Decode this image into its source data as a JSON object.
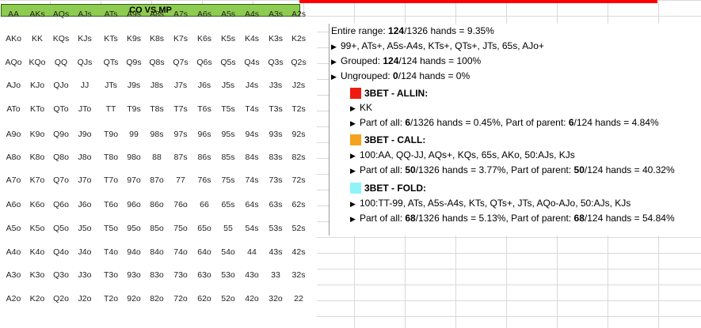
{
  "title": "CO VS MP",
  "colors": {
    "allin": "#ee1c10",
    "call": "#f5a21c",
    "fold": "#8ff3f8",
    "title_bg": "#8ecb51"
  },
  "matrix": [
    [
      [
        "AA",
        "call"
      ],
      [
        "AKs",
        "call"
      ],
      [
        "AQs",
        "call"
      ],
      [
        "AJs",
        "call"
      ],
      [
        "ATs",
        "fold"
      ],
      [
        "A9s",
        ""
      ],
      [
        "A8s",
        ""
      ],
      [
        "A7s",
        ""
      ],
      [
        "A6s",
        ""
      ],
      [
        "A5s",
        "fold"
      ],
      [
        "A4s",
        "fold"
      ],
      [
        "A3s",
        ""
      ],
      [
        "A2s",
        ""
      ]
    ],
    [
      [
        "AKo",
        "call"
      ],
      [
        "KK",
        "allin"
      ],
      [
        "KQs",
        "call"
      ],
      [
        "KJs",
        "call"
      ],
      [
        "KTs",
        "fold"
      ],
      [
        "K9s",
        ""
      ],
      [
        "K8s",
        ""
      ],
      [
        "K7s",
        ""
      ],
      [
        "K6s",
        ""
      ],
      [
        "K5s",
        ""
      ],
      [
        "K4s",
        ""
      ],
      [
        "K3s",
        ""
      ],
      [
        "K2s",
        ""
      ]
    ],
    [
      [
        "AQo",
        "fold"
      ],
      [
        "KQo",
        ""
      ],
      [
        "QQ",
        "call"
      ],
      [
        "QJs",
        "fold"
      ],
      [
        "QTs",
        "fold"
      ],
      [
        "Q9s",
        ""
      ],
      [
        "Q8s",
        ""
      ],
      [
        "Q7s",
        ""
      ],
      [
        "Q6s",
        ""
      ],
      [
        "Q5s",
        ""
      ],
      [
        "Q4s",
        ""
      ],
      [
        "Q3s",
        ""
      ],
      [
        "Q2s",
        ""
      ]
    ],
    [
      [
        "AJo",
        "fold"
      ],
      [
        "KJo",
        ""
      ],
      [
        "QJo",
        ""
      ],
      [
        "JJ",
        "call"
      ],
      [
        "JTs",
        "fold"
      ],
      [
        "J9s",
        ""
      ],
      [
        "J8s",
        ""
      ],
      [
        "J7s",
        ""
      ],
      [
        "J6s",
        ""
      ],
      [
        "J5s",
        ""
      ],
      [
        "J4s",
        ""
      ],
      [
        "J3s",
        ""
      ],
      [
        "J2s",
        ""
      ]
    ],
    [
      [
        "ATo",
        ""
      ],
      [
        "KTo",
        ""
      ],
      [
        "QTo",
        ""
      ],
      [
        "JTo",
        ""
      ],
      [
        "TT",
        "fold"
      ],
      [
        "T9s",
        ""
      ],
      [
        "T8s",
        ""
      ],
      [
        "T7s",
        ""
      ],
      [
        "T6s",
        ""
      ],
      [
        "T5s",
        ""
      ],
      [
        "T4s",
        ""
      ],
      [
        "T3s",
        ""
      ],
      [
        "T2s",
        ""
      ]
    ],
    [
      [
        "A9o",
        ""
      ],
      [
        "K9o",
        ""
      ],
      [
        "Q9o",
        ""
      ],
      [
        "J9o",
        ""
      ],
      [
        "T9o",
        ""
      ],
      [
        "99",
        "fold"
      ],
      [
        "98s",
        ""
      ],
      [
        "97s",
        ""
      ],
      [
        "96s",
        ""
      ],
      [
        "95s",
        ""
      ],
      [
        "94s",
        ""
      ],
      [
        "93s",
        ""
      ],
      [
        "92s",
        ""
      ]
    ],
    [
      [
        "A8o",
        ""
      ],
      [
        "K8o",
        ""
      ],
      [
        "Q8o",
        ""
      ],
      [
        "J8o",
        ""
      ],
      [
        "T8o",
        ""
      ],
      [
        "98o",
        ""
      ],
      [
        "88",
        ""
      ],
      [
        "87s",
        ""
      ],
      [
        "86s",
        ""
      ],
      [
        "85s",
        ""
      ],
      [
        "84s",
        ""
      ],
      [
        "83s",
        ""
      ],
      [
        "82s",
        ""
      ]
    ],
    [
      [
        "A7o",
        ""
      ],
      [
        "K7o",
        ""
      ],
      [
        "Q7o",
        ""
      ],
      [
        "J7o",
        ""
      ],
      [
        "T7o",
        ""
      ],
      [
        "97o",
        ""
      ],
      [
        "87o",
        ""
      ],
      [
        "77",
        ""
      ],
      [
        "76s",
        ""
      ],
      [
        "75s",
        ""
      ],
      [
        "74s",
        ""
      ],
      [
        "73s",
        ""
      ],
      [
        "72s",
        ""
      ]
    ],
    [
      [
        "A6o",
        ""
      ],
      [
        "K6o",
        ""
      ],
      [
        "Q6o",
        ""
      ],
      [
        "J6o",
        ""
      ],
      [
        "T6o",
        ""
      ],
      [
        "96o",
        ""
      ],
      [
        "86o",
        ""
      ],
      [
        "76o",
        ""
      ],
      [
        "66",
        ""
      ],
      [
        "65s",
        "call"
      ],
      [
        "64s",
        ""
      ],
      [
        "63s",
        ""
      ],
      [
        "62s",
        ""
      ]
    ],
    [
      [
        "A5o",
        ""
      ],
      [
        "K5o",
        ""
      ],
      [
        "Q5o",
        ""
      ],
      [
        "J5o",
        ""
      ],
      [
        "T5o",
        ""
      ],
      [
        "95o",
        ""
      ],
      [
        "85o",
        ""
      ],
      [
        "75o",
        ""
      ],
      [
        "65o",
        ""
      ],
      [
        "55",
        ""
      ],
      [
        "54s",
        ""
      ],
      [
        "53s",
        ""
      ],
      [
        "52s",
        ""
      ]
    ],
    [
      [
        "A4o",
        ""
      ],
      [
        "K4o",
        ""
      ],
      [
        "Q4o",
        ""
      ],
      [
        "J4o",
        ""
      ],
      [
        "T4o",
        ""
      ],
      [
        "94o",
        ""
      ],
      [
        "84o",
        ""
      ],
      [
        "74o",
        ""
      ],
      [
        "64o",
        ""
      ],
      [
        "54o",
        ""
      ],
      [
        "44",
        ""
      ],
      [
        "43s",
        ""
      ],
      [
        "42s",
        ""
      ]
    ],
    [
      [
        "A3o",
        ""
      ],
      [
        "K3o",
        ""
      ],
      [
        "Q3o",
        ""
      ],
      [
        "J3o",
        ""
      ],
      [
        "T3o",
        ""
      ],
      [
        "93o",
        ""
      ],
      [
        "83o",
        ""
      ],
      [
        "73o",
        ""
      ],
      [
        "63o",
        ""
      ],
      [
        "53o",
        ""
      ],
      [
        "43o",
        ""
      ],
      [
        "33",
        ""
      ],
      [
        "32s",
        ""
      ]
    ],
    [
      [
        "A2o",
        ""
      ],
      [
        "K2o",
        ""
      ],
      [
        "Q2o",
        ""
      ],
      [
        "J2o",
        ""
      ],
      [
        "T2o",
        ""
      ],
      [
        "92o",
        ""
      ],
      [
        "82o",
        ""
      ],
      [
        "72o",
        ""
      ],
      [
        "62o",
        ""
      ],
      [
        "52o",
        ""
      ],
      [
        "42o",
        ""
      ],
      [
        "32o",
        ""
      ],
      [
        "22",
        ""
      ]
    ]
  ],
  "info": {
    "entire_range": {
      "label": "Entire range: ",
      "count": "124",
      "rest": "/1326 hands = 9.35%"
    },
    "range_list": "99+, ATs+, A5s-A4s, KTs+, QTs+, JTs, 65s, AJo+",
    "grouped": {
      "label": "Grouped: ",
      "count": "124",
      "rest": "/124 hands = 100%"
    },
    "ungrouped": {
      "label": "Ungrouped: ",
      "count": "0",
      "rest": "/124 hands = 0%"
    },
    "groups": [
      {
        "name": "3BET - ALLIN:",
        "hands": "KK",
        "part_label": "Part of all: ",
        "part_all_count": "6",
        "part_all_rest": "/1326 hands = 0.45%, Part of parent: ",
        "part_parent_count": "6",
        "part_parent_rest": "/124 hands = 4.84%"
      },
      {
        "name": "3BET - CALL:",
        "hands": "100:AA, QQ-JJ, AQs+, KQs, 65s, AKo, 50:AJs, KJs",
        "part_label": "Part of all: ",
        "part_all_count": "50",
        "part_all_rest": "/1326 hands = 3.77%, Part of parent: ",
        "part_parent_count": "50",
        "part_parent_rest": "/124 hands = 40.32%"
      },
      {
        "name": "3BET - FOLD:",
        "hands": "100:TT-99, ATs, A5s-A4s, KTs, QTs+, JTs, AQo-AJo, 50:AJs, KJs",
        "part_label": "Part of all: ",
        "part_all_count": "68",
        "part_all_rest": "/1326 hands = 5.13%, Part of parent: ",
        "part_parent_count": "68",
        "part_parent_rest": "/124 hands = 54.84%"
      }
    ]
  }
}
